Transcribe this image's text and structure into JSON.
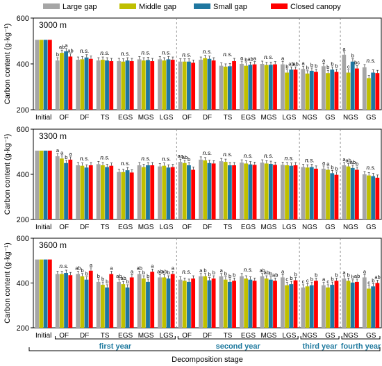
{
  "chart_data": {
    "type": "bar",
    "legend": {
      "placement": "top",
      "entries": [
        {
          "name": "Large gap",
          "color": "#a6a6a6"
        },
        {
          "name": "Middle gap",
          "color": "#bfbf00"
        },
        {
          "name": "Small gap",
          "color": "#1f77a0"
        },
        {
          "name": "Closed canopy",
          "color": "#ff0000"
        }
      ]
    },
    "categories": [
      "Initial",
      "OF",
      "DF",
      "TS",
      "EGS",
      "MGS",
      "LGS",
      "OF",
      "DF",
      "TS",
      "EGS",
      "MGS",
      "LGS",
      "NGS",
      "GS",
      "NGS",
      "GS"
    ],
    "ylabel": "Carbon content (g·kg⁻¹)",
    "xlabel": "Decomposition stage",
    "ylim": [
      200,
      600
    ],
    "yticks": [
      200,
      400,
      600
    ],
    "years": [
      {
        "label": "first year",
        "from": 1,
        "to": 6
      },
      {
        "label": "second year",
        "from": 7,
        "to": 12
      },
      {
        "label": "third year",
        "from": 13,
        "to": 14
      },
      {
        "label": "fourth year",
        "from": 15,
        "to": 16
      }
    ],
    "stage_separators_after": [
      6,
      12,
      14
    ],
    "panels": [
      {
        "title": "3000 m",
        "series": [
          {
            "name": "Large gap",
            "values": [
              505,
              415,
              418,
              415,
              412,
              420,
              420,
              410,
              418,
              392,
              400,
              400,
              398,
              378,
              390,
              440,
              385
            ]
          },
          {
            "name": "Middle gap",
            "values": [
              505,
              448,
              420,
              418,
              410,
              415,
              415,
              410,
              425,
              388,
              392,
              395,
              362,
              358,
              360,
              362,
              338
            ]
          },
          {
            "name": "Small gap",
            "values": [
              505,
              455,
              428,
              415,
              415,
              417,
              420,
              410,
              422,
              390,
              396,
              396,
              375,
              370,
              375,
              410,
              362
            ]
          },
          {
            "name": "Closed canopy",
            "values": [
              505,
              432,
              422,
              412,
              412,
              412,
              418,
              405,
              415,
              412,
              398,
              398,
              375,
              365,
              365,
              380,
              360
            ]
          }
        ],
        "letters": [
          "",
          "b|ab|a|ab",
          "n.s.",
          "n.s.",
          "n.s.",
          "n.s.",
          "n.s.",
          "n.s.",
          "n.s.",
          "n.s.",
          "a|b|ab|a",
          "n.s.",
          "a|b|ab|ab",
          "a|b|b|b",
          "a|b|b|b",
          "a|c|b|bc",
          "n.s."
        ]
      },
      {
        "title": "3300 m",
        "series": [
          {
            "name": "Large gap",
            "values": [
              505,
              480,
              440,
              445,
              410,
              440,
              435,
              455,
              465,
              458,
              452,
              452,
              442,
              432,
              425,
              440,
              400
            ]
          },
          {
            "name": "Middle gap",
            "values": [
              505,
              470,
              438,
              440,
              410,
              432,
              438,
              450,
              462,
              455,
              448,
              448,
              440,
              430,
              420,
              435,
              395
            ]
          },
          {
            "name": "Small gap",
            "values": [
              505,
              450,
              430,
              432,
              418,
              440,
              430,
              440,
              450,
              440,
              444,
              446,
              438,
              432,
              405,
              428,
              392
            ]
          },
          {
            "name": "Closed canopy",
            "values": [
              505,
              465,
              440,
              438,
              408,
              440,
              432,
              420,
              448,
              440,
              442,
              442,
              440,
              425,
              398,
              420,
              385
            ]
          }
        ],
        "letters": [
          "",
          "a|a|b|a",
          "n.s.",
          "n.s.",
          "n.s.",
          "n.s.",
          "n.s.",
          "aa|ab|b",
          "n.s.",
          "n.s.",
          "n.s.",
          "n.s.",
          "n.s.",
          "n.s.",
          "a|a|b|b",
          "a|ab|ab|b",
          "n.s."
        ]
      },
      {
        "title": "3600 m",
        "series": [
          {
            "name": "Large gap",
            "values": [
              505,
              440,
              440,
              405,
              405,
              440,
              425,
              415,
              430,
              430,
              430,
              430,
              425,
              380,
              390,
              420,
              425
            ]
          },
          {
            "name": "Middle gap",
            "values": [
              505,
              440,
              430,
              392,
              395,
              420,
              425,
              410,
              430,
              415,
              420,
              420,
              390,
              385,
              380,
              410,
              375
            ]
          },
          {
            "name": "Small gap",
            "values": [
              505,
              445,
              415,
              380,
              380,
              405,
              420,
              405,
              412,
              405,
              415,
              415,
              395,
              390,
              392,
              402,
              385
            ]
          },
          {
            "name": "Closed canopy",
            "values": [
              505,
              435,
              455,
              440,
              425,
              450,
              440,
              420,
              420,
              410,
              410,
              410,
              412,
              410,
              410,
              405,
              400
            ]
          }
        ],
        "letters": [
          "",
          "n.s.",
          "ab|b|b|a",
          "b|b|b|a",
          "ab|ab|b|a",
          "ab|b|b|a",
          "ab|ab|b|a",
          "n.s.",
          "a|b|b|b",
          "a|b|b|b",
          "n.s.",
          "ab|ab|b|ab",
          "a|c|b|b",
          "c|c|b|b",
          "a|c|b|b",
          "a|b|b|ab",
          "a|c|b|ab"
        ]
      }
    ]
  }
}
